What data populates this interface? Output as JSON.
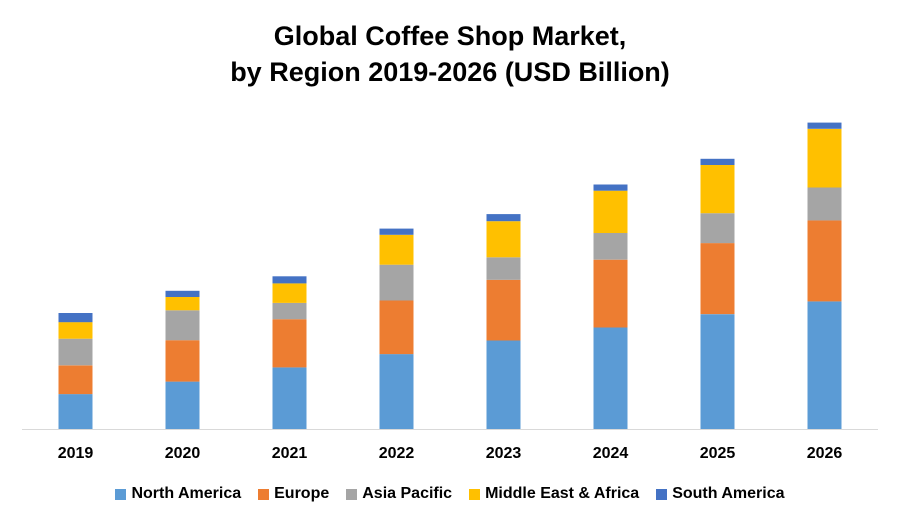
{
  "chart_data": {
    "type": "bar",
    "stacked": true,
    "title": "Global Coffee Shop Market,",
    "subtitle": "by Region 2019-2026 (USD Billion)",
    "xlabel": "",
    "ylabel": "",
    "categories": [
      "2019",
      "2020",
      "2021",
      "2022",
      "2023",
      "2024",
      "2025",
      "2026"
    ],
    "ylim": [
      0,
      100
    ],
    "grid": false,
    "legend_position": "bottom",
    "series": [
      {
        "name": "North America",
        "color": "#5B9BD5",
        "values": [
          11.8,
          16.0,
          20.8,
          25.3,
          29.9,
          34.3,
          38.8,
          43.1
        ]
      },
      {
        "name": "Europe",
        "color": "#ED7D31",
        "values": [
          9.7,
          14.0,
          16.3,
          18.1,
          20.5,
          22.9,
          24.0,
          27.4
        ]
      },
      {
        "name": "Asia Pacific",
        "color": "#A5A5A5",
        "values": [
          9.0,
          10.1,
          5.5,
          12.1,
          7.6,
          9.0,
          10.1,
          11.1
        ]
      },
      {
        "name": "Middle East & Africa",
        "color": "#FFC000",
        "values": [
          5.6,
          4.5,
          6.6,
          10.1,
          12.2,
          14.3,
          16.3,
          19.8
        ]
      },
      {
        "name": "South America",
        "color": "#4472C4",
        "values": [
          3.1,
          2.1,
          2.4,
          2.1,
          2.4,
          2.1,
          2.1,
          2.1
        ]
      }
    ]
  }
}
